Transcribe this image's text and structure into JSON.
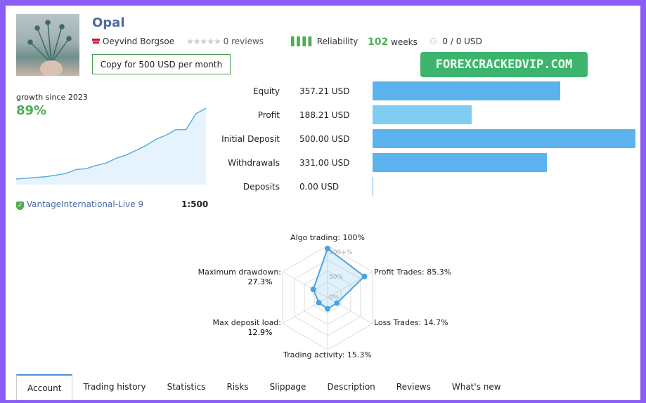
{
  "signal": {
    "name": "Opal",
    "author": "Oeyvind Borgsoe",
    "reviews": "0 reviews",
    "reliability": "Reliability",
    "weeks_num": "102",
    "weeks_label": "weeks",
    "subscribers": "0 / 0 USD",
    "copy_button": "Copy for 500 USD per month"
  },
  "promo": "FOREXCRACKEDVIP.COM",
  "growth": {
    "label": "growth since 2023",
    "value": "89%",
    "broker": "VantageInternational-Live 9",
    "leverage": "1:500"
  },
  "balances": [
    {
      "label": "Equity",
      "value": "357.21 USD",
      "amount": 357.21,
      "color": "#5bb3ee"
    },
    {
      "label": "Profit",
      "value": "188.21 USD",
      "amount": 188.21,
      "color": "#7fcdf3"
    },
    {
      "label": "Initial Deposit",
      "value": "500.00 USD",
      "amount": 500,
      "color": "#5bb3ee"
    },
    {
      "label": "Withdrawals",
      "value": "331.00 USD",
      "amount": 331,
      "color": "#5bb3ee"
    },
    {
      "label": "Deposits",
      "value": "0.00 USD",
      "amount": 0,
      "color": "#5bb3ee"
    }
  ],
  "chart_data": [
    {
      "type": "line",
      "title": "growth since 2023",
      "series": [
        {
          "name": "growth",
          "values": [
            0,
            1,
            2,
            3,
            5,
            7,
            12,
            13,
            17,
            20,
            26,
            30,
            36,
            42,
            50,
            55,
            62,
            62,
            82,
            89
          ]
        }
      ]
    },
    {
      "type": "radar",
      "grid_labels": [
        "100+%",
        "50%",
        "0%"
      ],
      "axes": [
        {
          "label": "Algo trading: 100%",
          "value": 100
        },
        {
          "label": "Profit Trades: 85.3%",
          "value": 85.3
        },
        {
          "label": "Loss Trades: 14.7%",
          "value": 14.7
        },
        {
          "label": "Trading activity: 15.3%",
          "value": 15.3
        },
        {
          "label": "Max deposit load:",
          "label2": "12.9%",
          "value": 12.9
        },
        {
          "label": "Maximum drawdown:",
          "label2": "27.3%",
          "value": 27.3
        }
      ]
    }
  ],
  "tabs": [
    "Account",
    "Trading history",
    "Statistics",
    "Risks",
    "Slippage",
    "Description",
    "Reviews",
    "What's new"
  ]
}
